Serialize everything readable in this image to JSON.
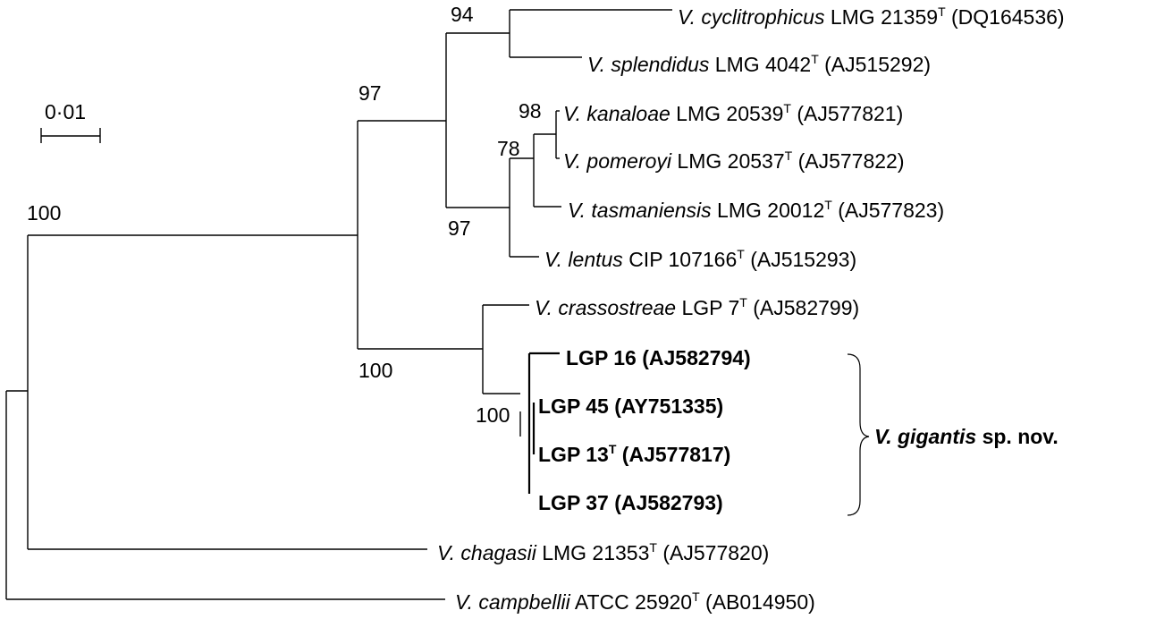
{
  "scale_bar": {
    "label": "0·01"
  },
  "bootstrap": {
    "b94": "94",
    "b97_top": "97",
    "b98": "98",
    "b78": "78",
    "b97_low": "97",
    "b100_root": "100",
    "b100_mid": "100",
    "b100_gigantis": "100"
  },
  "taxa": [
    {
      "genus": "V.",
      "species": "cyclitrophicus",
      "strain": "LMG 21359",
      "type": "T",
      "acc": "(DQ164536)",
      "bold": false
    },
    {
      "genus": "V.",
      "species": "splendidus",
      "strain": "LMG 4042",
      "type": "T",
      "acc": "(AJ515292)",
      "bold": false
    },
    {
      "genus": "V.",
      "species": "kanaloae",
      "strain": "LMG 20539",
      "type": "T",
      "acc": "(AJ577821)",
      "bold": false
    },
    {
      "genus": "V.",
      "species": "pomeroyi",
      "strain": "LMG 20537",
      "type": "T",
      "acc": "(AJ577822)",
      "bold": false
    },
    {
      "genus": "V.",
      "species": "tasmaniensis",
      "strain": "LMG 20012",
      "type": "T",
      "acc": "(AJ577823)",
      "bold": false
    },
    {
      "genus": "V.",
      "species": "lentus",
      "strain": "CIP 107166",
      "type": "T",
      "acc": "(AJ515293)",
      "bold": false
    },
    {
      "genus": "V.",
      "species": "crassostreae",
      "strain": "LGP 7",
      "type": "T",
      "acc": "(AJ582799)",
      "bold": false
    },
    {
      "genus": "",
      "species": "",
      "strain": "LGP 16",
      "type": "",
      "acc": "(AJ582794)",
      "bold": true
    },
    {
      "genus": "",
      "species": "",
      "strain": "LGP 45",
      "type": "",
      "acc": "(AY751335)",
      "bold": true
    },
    {
      "genus": "",
      "species": "",
      "strain": "LGP 13",
      "type": "T",
      "acc": "(AJ577817)",
      "bold": true
    },
    {
      "genus": "",
      "species": "",
      "strain": "LGP 37",
      "type": "",
      "acc": "(AJ582793)",
      "bold": true
    },
    {
      "genus": "V.",
      "species": "chagasii",
      "strain": "LMG 21353",
      "type": "T",
      "acc": "(AJ577820)",
      "bold": false
    },
    {
      "genus": "V.",
      "species": "campbellii",
      "strain": "ATCC 25920",
      "type": "T",
      "acc": "(AB014950)",
      "bold": false
    }
  ],
  "clade": {
    "name": "V. gigantis",
    "suffix": "sp. nov."
  }
}
